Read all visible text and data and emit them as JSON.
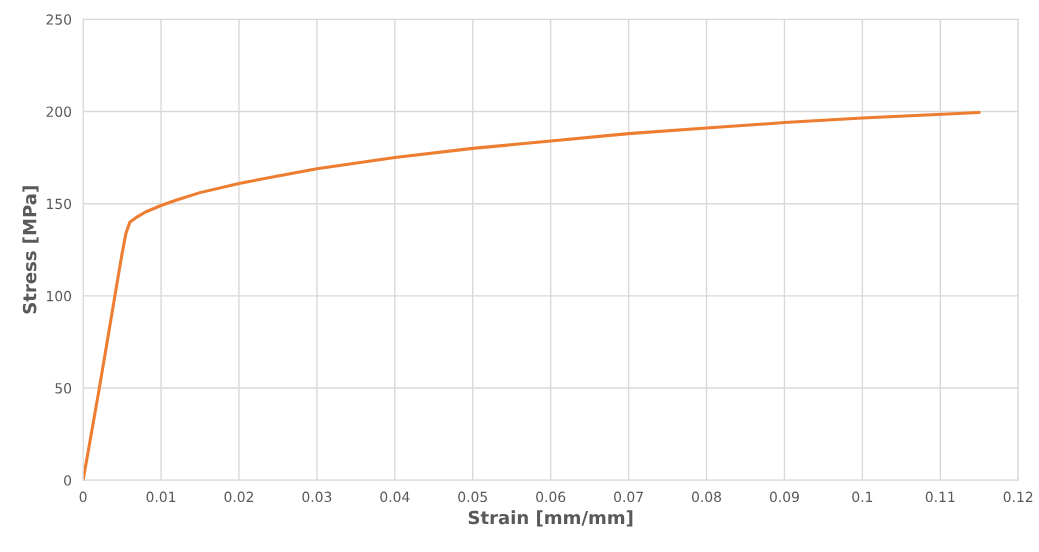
{
  "chart_data": {
    "type": "line",
    "xlabel": "Strain [mm/mm]",
    "ylabel": "Stress [MPa]",
    "x": [
      0,
      0.001,
      0.002,
      0.003,
      0.004,
      0.005,
      0.0055,
      0.006,
      0.007,
      0.008,
      0.01,
      0.012,
      0.015,
      0.02,
      0.025,
      0.03,
      0.04,
      0.05,
      0.06,
      0.07,
      0.08,
      0.09,
      0.1,
      0.115
    ],
    "series": [
      {
        "color": "#ed7d31",
        "values": [
          0,
          24,
          48,
          73,
          98,
          123,
          134,
          140,
          143,
          145.5,
          149,
          152,
          156,
          161,
          165,
          169,
          175,
          180,
          184,
          188,
          191,
          194,
          196.5,
          199.5
        ]
      }
    ],
    "xlim": [
      0,
      0.12
    ],
    "xticks": [
      0,
      0.01,
      0.02,
      0.03,
      0.04,
      0.05,
      0.06,
      0.07,
      0.08,
      0.09,
      0.1,
      0.11,
      0.12
    ],
    "ylim": [
      0,
      250
    ],
    "yticks": [
      0,
      50,
      100,
      150,
      200,
      250
    ],
    "grid": true,
    "legend": false,
    "marker": "none",
    "line_style": "solid"
  }
}
